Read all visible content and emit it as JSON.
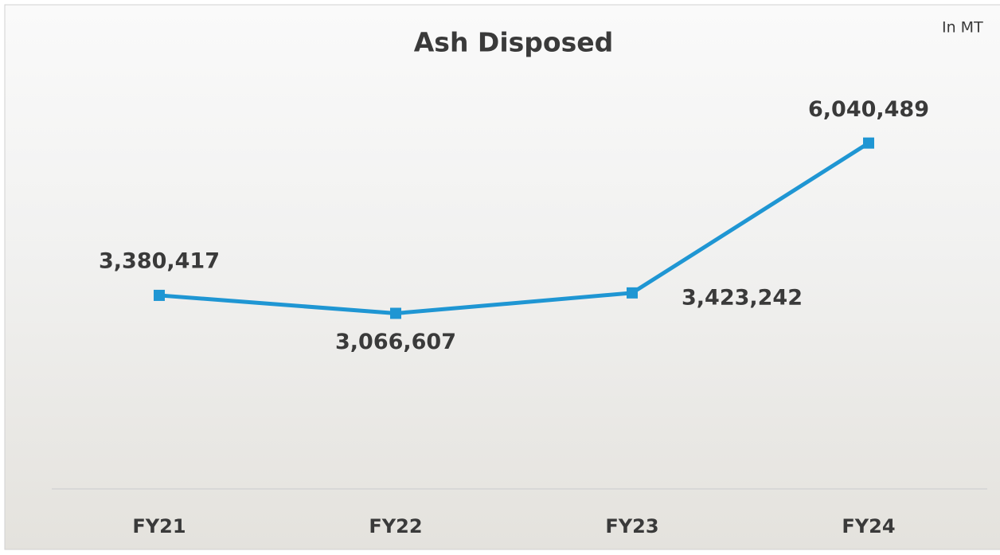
{
  "chart_data": {
    "type": "line",
    "title": "Ash Disposed",
    "unit_label": "In MT",
    "categories": [
      "FY21",
      "FY22",
      "FY23",
      "FY24"
    ],
    "series": [
      {
        "name": "Ash Disposed",
        "color": "#1f96d3",
        "values": [
          3380417,
          3066607,
          3423242,
          6040489
        ],
        "value_labels": [
          "3,380,417",
          "3,066,607",
          "3,423,242",
          "6,040,489"
        ]
      }
    ],
    "ylim": [
      0,
      8400000
    ]
  }
}
